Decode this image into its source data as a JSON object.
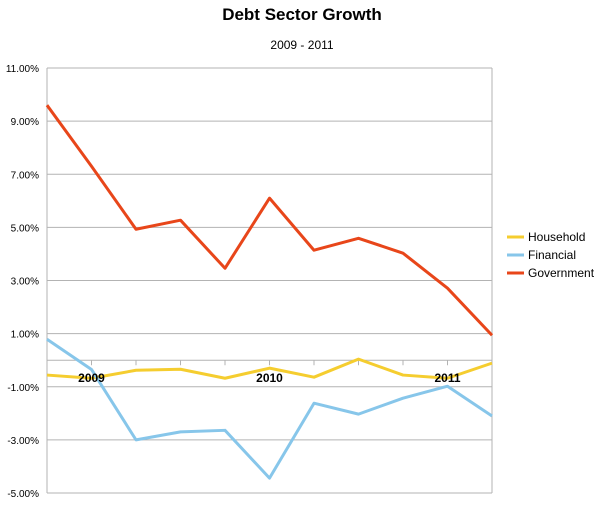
{
  "chart_data": {
    "type": "line",
    "title": "Debt Sector Growth",
    "subtitle": "2009 - 2011",
    "xlabel": "",
    "ylabel": "",
    "ylim": [
      -5,
      11
    ],
    "yticks": [
      11,
      9,
      7,
      5,
      3,
      1,
      -1,
      -3,
      -5
    ],
    "ytick_labels": [
      "11.00%",
      "9.00%",
      "7.00%",
      "5.00%",
      "3.00%",
      "1.00%",
      "-1.00%",
      "-3.00%",
      "-5.00%"
    ],
    "x": [
      0,
      1,
      2,
      3,
      4,
      5,
      6,
      7,
      8,
      9,
      10
    ],
    "xtick_labels": [
      {
        "x": 1,
        "label": "2009"
      },
      {
        "x": 5,
        "label": "2010"
      },
      {
        "x": 9,
        "label": "2011"
      }
    ],
    "grid": true,
    "legend_position": "right",
    "series": [
      {
        "name": "Household",
        "color": "#f5cd2f",
        "values": [
          -0.56,
          -0.68,
          -0.38,
          -0.34,
          -0.68,
          -0.3,
          -0.64,
          0.04,
          -0.56,
          -0.68,
          -0.11
        ]
      },
      {
        "name": "Financial",
        "color": "#87c6ea",
        "values": [
          0.79,
          -0.35,
          -3.0,
          -2.7,
          -2.64,
          -4.44,
          -1.62,
          -2.03,
          -1.43,
          -0.98,
          -2.1
        ]
      },
      {
        "name": "Government",
        "color": "#e8461a",
        "values": [
          9.6,
          7.3,
          4.93,
          5.27,
          3.46,
          6.1,
          4.14,
          4.59,
          4.03,
          2.71,
          0.94
        ]
      }
    ]
  }
}
